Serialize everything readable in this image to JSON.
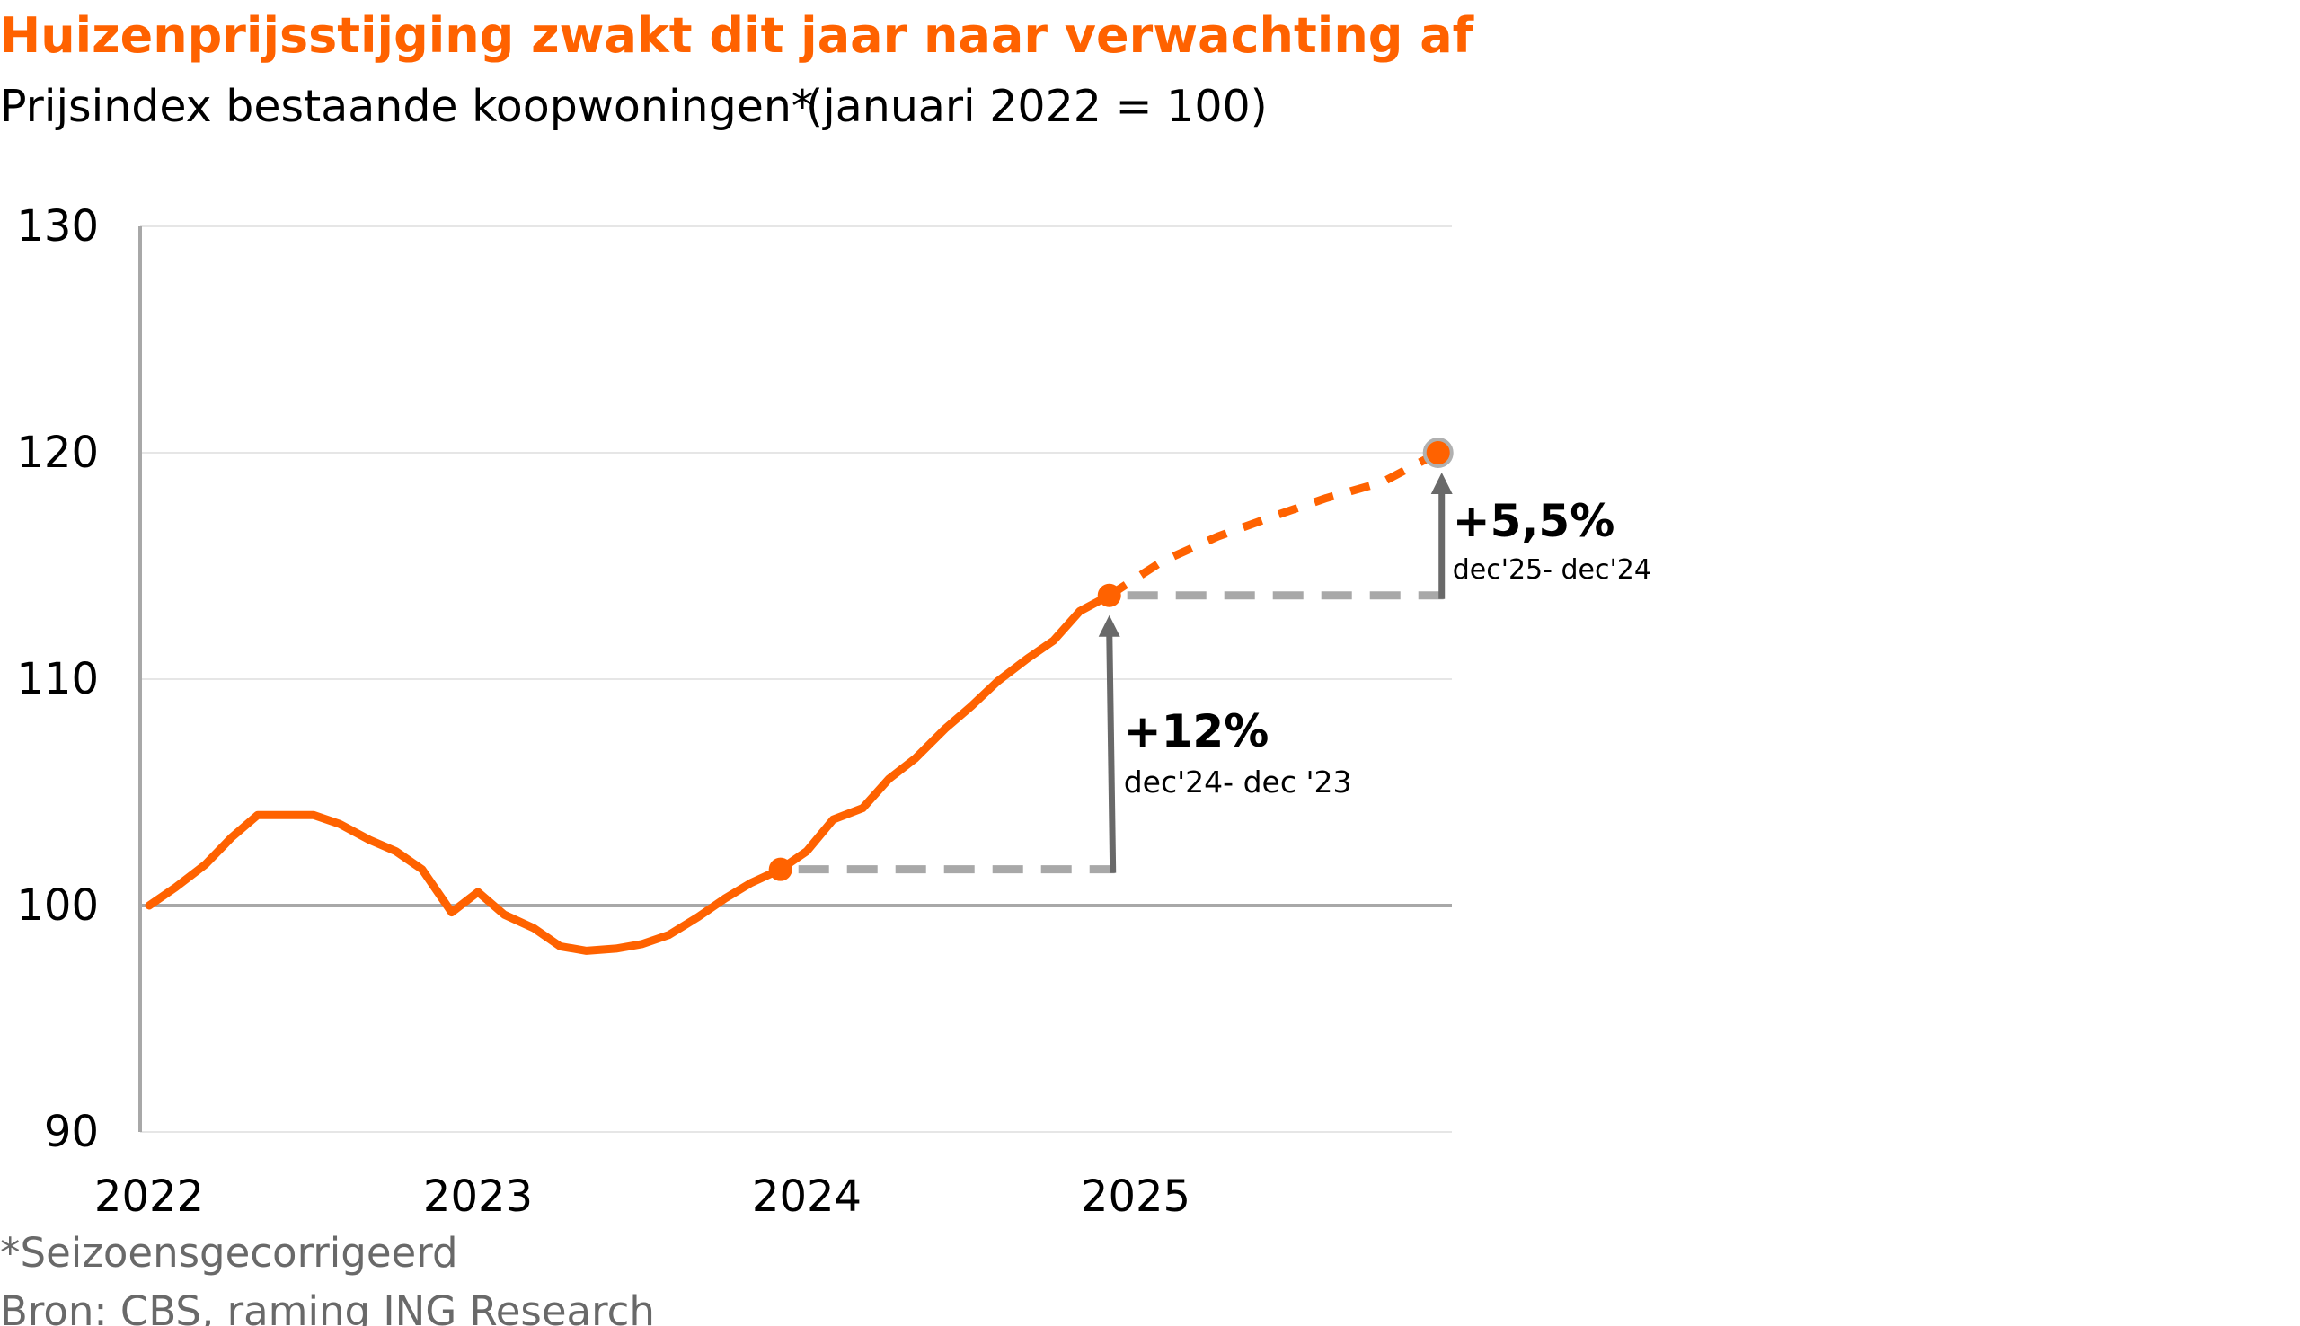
{
  "colors": {
    "accent": "#ff6200",
    "axis": "#a8a8a8",
    "grid": "#e6e6e6",
    "arrow": "#696969",
    "text": "#000000",
    "muted": "#696969"
  },
  "chart_data": {
    "type": "line",
    "title": "Huizenprijsstijging zwakt dit jaar naar verwachting af",
    "subtitle_a": "Prijsindex bestaande koopwoningen*",
    "subtitle_b": "(januari 2022 = 100)",
    "ylim": [
      90,
      130
    ],
    "yticks": [
      "130",
      "120",
      "110",
      "100",
      "90"
    ],
    "xlim": [
      2022,
      2026
    ],
    "xticks": [
      "2022",
      "2023",
      "2024",
      "2025"
    ],
    "reference_value": 100,
    "series": [
      {
        "style": "actual",
        "x": [
          2022.0,
          2022.08,
          2022.17,
          2022.25,
          2022.33,
          2022.42,
          2022.5,
          2022.58,
          2022.67,
          2022.75,
          2022.83,
          2022.92,
          2023.0,
          2023.08,
          2023.17,
          2023.25,
          2023.33,
          2023.42,
          2023.5,
          2023.58,
          2023.67,
          2023.75,
          2023.83,
          2023.92,
          2024.0,
          2024.08,
          2024.17,
          2024.25,
          2024.33,
          2024.42,
          2024.5,
          2024.58,
          2024.67,
          2024.75,
          2024.83,
          2024.92
        ],
        "y": [
          100.0,
          100.8,
          101.8,
          103.0,
          104.0,
          104.0,
          104.0,
          103.6,
          102.9,
          102.4,
          101.6,
          99.7,
          100.6,
          99.6,
          99.0,
          98.2,
          98.0,
          98.1,
          98.3,
          98.7,
          99.5,
          100.3,
          101.0,
          101.6,
          102.4,
          103.8,
          104.3,
          105.6,
          106.5,
          107.8,
          108.8,
          109.9,
          110.9,
          111.7,
          113.0,
          113.7
        ]
      },
      {
        "style": "forecast",
        "x": [
          2024.92,
          2025.08,
          2025.25,
          2025.42,
          2025.58,
          2025.75,
          2025.92
        ],
        "y": [
          113.7,
          115.2,
          116.3,
          117.2,
          118.0,
          118.7,
          120.0
        ]
      }
    ],
    "markers": [
      {
        "x": 2023.92,
        "y": 101.6
      },
      {
        "x": 2024.92,
        "y": 113.7
      },
      {
        "x": 2025.92,
        "y": 120.0
      }
    ],
    "annotations": [
      {
        "from_x": 2023.92,
        "to_x": 2024.92,
        "base_y": 101.6,
        "top_y": 113.7,
        "value": "+12%",
        "label": "dec'24- dec '23"
      },
      {
        "from_x": 2024.92,
        "to_x": 2025.92,
        "base_y": 113.7,
        "top_y": 120.0,
        "value": "+5,5%",
        "label": "dec'25- dec'24"
      }
    ]
  },
  "footnote": "*Seizoensgecorrigeerd",
  "source": "Bron: CBS, raming ING Research"
}
